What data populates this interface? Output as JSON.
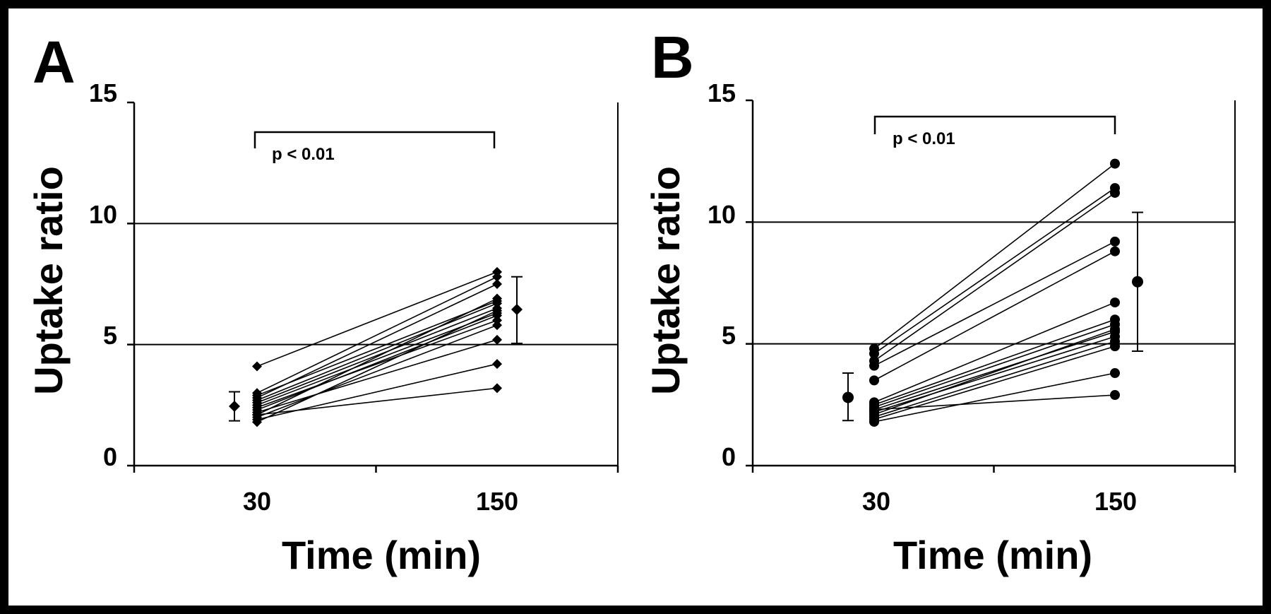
{
  "colors": {
    "background": "#ffffff",
    "border": "#000000",
    "ink": "#000000"
  },
  "chart_data": [
    {
      "type": "line",
      "panel_label": "A",
      "marker": "diamond",
      "xlabel": "Time (min)",
      "ylabel": "Uptake ratio",
      "categories": [
        "30",
        "150"
      ],
      "ylim": [
        0,
        15
      ],
      "yticks": [
        "0",
        "5",
        "10",
        "15"
      ],
      "grid": "horizontal at 5 and 10",
      "significance": "p < 0.01",
      "series": [
        {
          "values": [
            4.1,
            8.0
          ]
        },
        {
          "values": [
            3.0,
            7.8
          ]
        },
        {
          "values": [
            2.9,
            6.8
          ]
        },
        {
          "values": [
            2.8,
            7.5
          ]
        },
        {
          "values": [
            2.7,
            6.7
          ]
        },
        {
          "values": [
            2.6,
            6.5
          ]
        },
        {
          "values": [
            2.5,
            6.3
          ]
        },
        {
          "values": [
            2.4,
            6.0
          ]
        },
        {
          "values": [
            2.3,
            6.2
          ]
        },
        {
          "values": [
            2.2,
            5.2
          ]
        },
        {
          "values": [
            2.1,
            6.9
          ]
        },
        {
          "values": [
            2.0,
            5.8
          ]
        },
        {
          "values": [
            1.9,
            4.2
          ]
        },
        {
          "values": [
            1.8,
            6.4
          ]
        },
        {
          "values": [
            2.1,
            3.2
          ]
        }
      ],
      "summary": [
        {
          "x": "30",
          "mean": 2.45,
          "low": 1.85,
          "high": 3.05
        },
        {
          "x": "150",
          "mean": 6.45,
          "low": 5.05,
          "high": 7.8
        }
      ]
    },
    {
      "type": "line",
      "panel_label": "B",
      "marker": "circle",
      "xlabel": "Time (min)",
      "ylabel": "Uptake ratio",
      "categories": [
        "30",
        "150"
      ],
      "ylim": [
        0,
        15
      ],
      "yticks": [
        "0",
        "5",
        "10",
        "15"
      ],
      "grid": "horizontal at 5 and 10",
      "significance": "p < 0.01",
      "series": [
        {
          "values": [
            4.8,
            12.4
          ]
        },
        {
          "values": [
            4.6,
            11.4
          ]
        },
        {
          "values": [
            4.3,
            11.2
          ]
        },
        {
          "values": [
            4.1,
            9.2
          ]
        },
        {
          "values": [
            3.5,
            8.8
          ]
        },
        {
          "values": [
            2.6,
            6.7
          ]
        },
        {
          "values": [
            2.5,
            6.0
          ]
        },
        {
          "values": [
            2.4,
            5.8
          ]
        },
        {
          "values": [
            2.3,
            5.5
          ]
        },
        {
          "values": [
            2.2,
            5.3
          ]
        },
        {
          "values": [
            2.1,
            5.6
          ]
        },
        {
          "values": [
            2.0,
            5.1
          ]
        },
        {
          "values": [
            1.9,
            4.9
          ]
        },
        {
          "values": [
            1.8,
            3.8
          ]
        },
        {
          "values": [
            2.3,
            2.9
          ]
        }
      ],
      "summary": [
        {
          "x": "30",
          "mean": 2.8,
          "low": 1.85,
          "high": 3.8
        },
        {
          "x": "150",
          "mean": 7.55,
          "low": 4.7,
          "high": 10.4
        }
      ]
    }
  ]
}
